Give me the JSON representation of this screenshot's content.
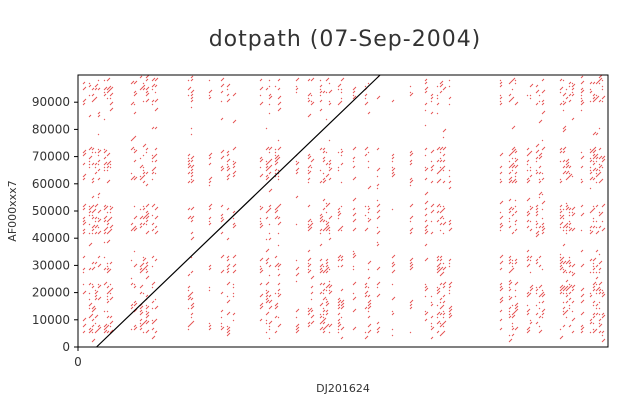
{
  "chart_data": {
    "type": "scatter",
    "title": "dotpath (07-Sep-2004)",
    "xlabel": "DJ201624",
    "ylabel": "AF000xxx7",
    "x_ticks": [
      "0"
    ],
    "y_ticks": [
      "0",
      "10000",
      "20000",
      "30000",
      "40000",
      "50000",
      "60000",
      "70000",
      "80000",
      "90000"
    ],
    "xlim": [
      0,
      100000
    ],
    "ylim": [
      0,
      100000
    ],
    "grid": false,
    "series": [
      {
        "values": [
          [
            3500,
            0
          ],
          [
            57000,
            100000
          ]
        ]
      }
    ],
    "colors": {
      "main_line": "#000000",
      "repeat_marks": "#e03030",
      "axes": "#000000",
      "text": "#333333"
    }
  }
}
